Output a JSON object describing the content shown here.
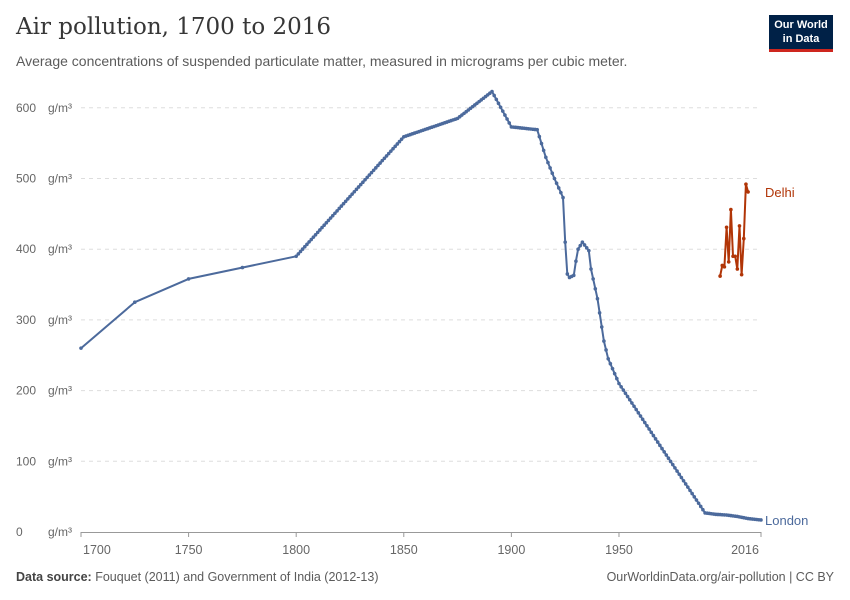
{
  "header": {
    "title": "Air pollution, 1700 to 2016",
    "subtitle": "Average concentrations of suspended particulate matter, measured in micrograms per cubic meter.",
    "logo_line1": "Our World",
    "logo_line2": "in Data"
  },
  "footer": {
    "source_label": "Data source:",
    "source_text": "Fouquet (2011) and Government of India (2012-13)",
    "license": "OurWorldinData.org/air-pollution | CC BY"
  },
  "chart_data": {
    "type": "line",
    "title": "Air pollution, 1700 to 2016",
    "xlim": [
      1700,
      2016
    ],
    "ylim": [
      0,
      620
    ],
    "x_ticks": [
      1700,
      1750,
      1800,
      1850,
      1900,
      1950,
      2016
    ],
    "y_ticks": [
      0,
      100,
      200,
      300,
      400,
      500,
      600
    ],
    "y_unit": "g/m³",
    "grid": "horizontal dashed",
    "legend": "line-end labels",
    "series": [
      {
        "name": "London",
        "color": "#4c6a9c",
        "points": [
          [
            1700,
            260
          ],
          [
            1725,
            325
          ],
          [
            1750,
            358
          ],
          [
            1800,
            390
          ],
          [
            1850,
            559
          ],
          [
            1875,
            585
          ],
          [
            1891,
            623
          ],
          [
            1900,
            573
          ],
          [
            1912,
            569
          ],
          [
            1916,
            530
          ],
          [
            1920,
            500
          ],
          [
            1923,
            480
          ],
          [
            1924,
            473
          ],
          [
            1925,
            410
          ],
          [
            1926,
            365
          ],
          [
            1927,
            360
          ],
          [
            1929,
            363
          ],
          [
            1930,
            383
          ],
          [
            1931,
            400
          ],
          [
            1933,
            410
          ],
          [
            1935,
            402
          ],
          [
            1936,
            398
          ],
          [
            1937,
            372
          ],
          [
            1940,
            330
          ],
          [
            1943,
            270
          ],
          [
            1945,
            245
          ],
          [
            1950,
            210
          ],
          [
            1970,
            118
          ],
          [
            1990,
            27
          ],
          [
            1995,
            25
          ],
          [
            2000,
            24
          ],
          [
            2005,
            22
          ],
          [
            2010,
            19
          ],
          [
            2016,
            17
          ]
        ]
      },
      {
        "name": "Delhi",
        "color": "#b13507",
        "points": [
          [
            1997,
            362
          ],
          [
            1998,
            377
          ],
          [
            1999,
            375
          ],
          [
            2000,
            431
          ],
          [
            2001,
            382
          ],
          [
            2002,
            456
          ],
          [
            2003,
            390
          ],
          [
            2004,
            390
          ],
          [
            2005,
            372
          ],
          [
            2006,
            433
          ],
          [
            2007,
            364
          ],
          [
            2008,
            415
          ],
          [
            2009,
            492
          ],
          [
            2010,
            481
          ]
        ]
      }
    ]
  }
}
